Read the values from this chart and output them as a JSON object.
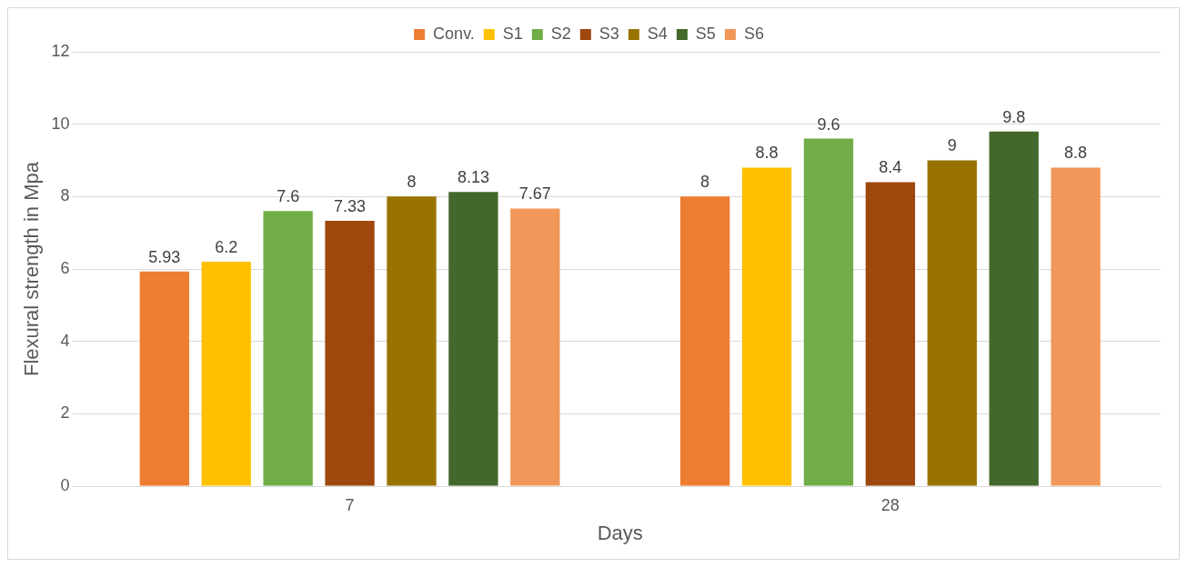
{
  "chart_data": {
    "type": "bar",
    "xlabel": "Days",
    "ylabel": "Flexural strength in Mpa",
    "categories": [
      "7",
      "28"
    ],
    "series": [
      {
        "name": "Conv.",
        "color": "#ed7d31",
        "values": [
          5.93,
          8
        ]
      },
      {
        "name": "S1",
        "color": "#ffc000",
        "values": [
          6.2,
          8.8
        ]
      },
      {
        "name": "S2",
        "color": "#70ad47",
        "values": [
          7.6,
          9.6
        ]
      },
      {
        "name": "S3",
        "color": "#9e480e",
        "values": [
          7.33,
          8.4
        ]
      },
      {
        "name": "S4",
        "color": "#997300",
        "values": [
          8,
          9
        ]
      },
      {
        "name": "S5",
        "color": "#43682b",
        "values": [
          8.13,
          9.8
        ]
      },
      {
        "name": "S6",
        "color": "#f1975a",
        "values": [
          7.67,
          8.8
        ]
      }
    ],
    "ylim": [
      0,
      12
    ],
    "yticks": [
      0,
      2,
      4,
      6,
      8,
      10,
      12
    ],
    "grid": "y",
    "legend": "top",
    "data_labels": true
  }
}
